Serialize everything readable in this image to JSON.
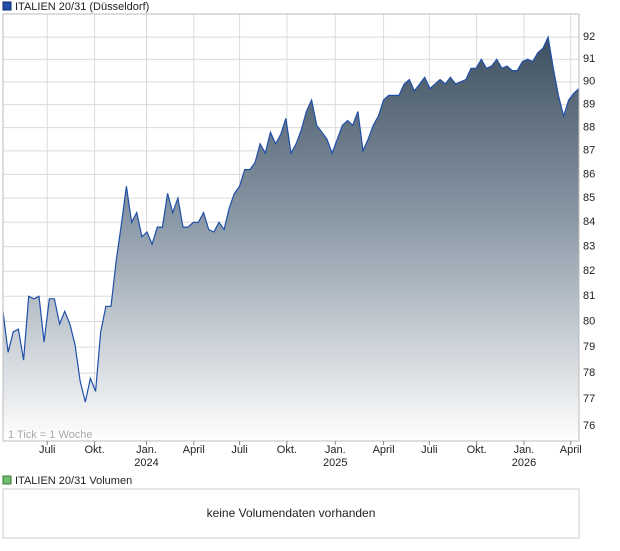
{
  "chart_data": {
    "type": "area",
    "title": "ITALIEN 20/31 (Düsseldorf)",
    "note": "1 Tick = 1 Woche",
    "log": true,
    "grid": true,
    "series": [
      {
        "name": "ITALIEN 20/31",
        "color": "#1f4fa8",
        "values": [
          80.4,
          78.8,
          79.6,
          79.7,
          78.5,
          81.0,
          80.9,
          81.0,
          79.2,
          80.9,
          80.9,
          79.9,
          80.4,
          79.9,
          79.1,
          77.7,
          76.9,
          77.8,
          77.3,
          79.6,
          80.6,
          80.6,
          82.4,
          83.9,
          85.5,
          84.0,
          84.4,
          83.4,
          83.6,
          83.1,
          83.8,
          83.8,
          85.2,
          84.4,
          85.0,
          83.8,
          83.8,
          84.0,
          84.0,
          84.4,
          83.7,
          83.6,
          84.0,
          83.7,
          84.6,
          85.2,
          85.5,
          86.2,
          86.2,
          86.5,
          87.3,
          86.9,
          87.8,
          87.3,
          87.7,
          88.4,
          86.9,
          87.3,
          87.9,
          88.7,
          89.2,
          88.1,
          87.8,
          87.5,
          86.9,
          87.5,
          88.1,
          88.3,
          88.1,
          88.7,
          87.0,
          87.5,
          88.1,
          88.5,
          89.2,
          89.4,
          89.4,
          89.4,
          89.9,
          90.1,
          89.6,
          89.9,
          90.2,
          89.7,
          89.9,
          90.1,
          89.9,
          90.2,
          89.9,
          90.0,
          90.1,
          90.6,
          90.6,
          91.0,
          90.6,
          90.7,
          91.0,
          90.6,
          90.7,
          90.5,
          90.5,
          90.9,
          91.0,
          90.9,
          91.3,
          91.5,
          92.0,
          90.6,
          89.4,
          88.5,
          89.2,
          89.5,
          89.7
        ]
      }
    ],
    "xlim": [
      0,
      112
    ],
    "xticks": [
      {
        "value": 8.6,
        "label": "Juli"
      },
      {
        "value": 17.8,
        "label": "Okt."
      },
      {
        "value": 27.9,
        "label": "Jan.",
        "year": "2024"
      },
      {
        "value": 37.1,
        "label": "April"
      },
      {
        "value": 46.0,
        "label": "Juli"
      },
      {
        "value": 55.2,
        "label": "Okt."
      },
      {
        "value": 64.6,
        "label": "Jan.",
        "year": "2025"
      },
      {
        "value": 74.0,
        "label": "April"
      },
      {
        "value": 82.9,
        "label": "Juli"
      },
      {
        "value": 92.1,
        "label": "Okt."
      },
      {
        "value": 101.3,
        "label": "Jan.",
        "year": "2026"
      },
      {
        "value": 110.4,
        "label": "April"
      }
    ],
    "ylim": [
      75.44,
      93.05
    ],
    "yticks": [
      76,
      77,
      78,
      79,
      80,
      81,
      82,
      83,
      84,
      85,
      86,
      87,
      88,
      89,
      90,
      91,
      92
    ],
    "volume": {
      "title": "ITALIEN 20/31 Volumen",
      "color": "#6fbf6f",
      "message": "keine Volumendaten vorhanden"
    }
  }
}
